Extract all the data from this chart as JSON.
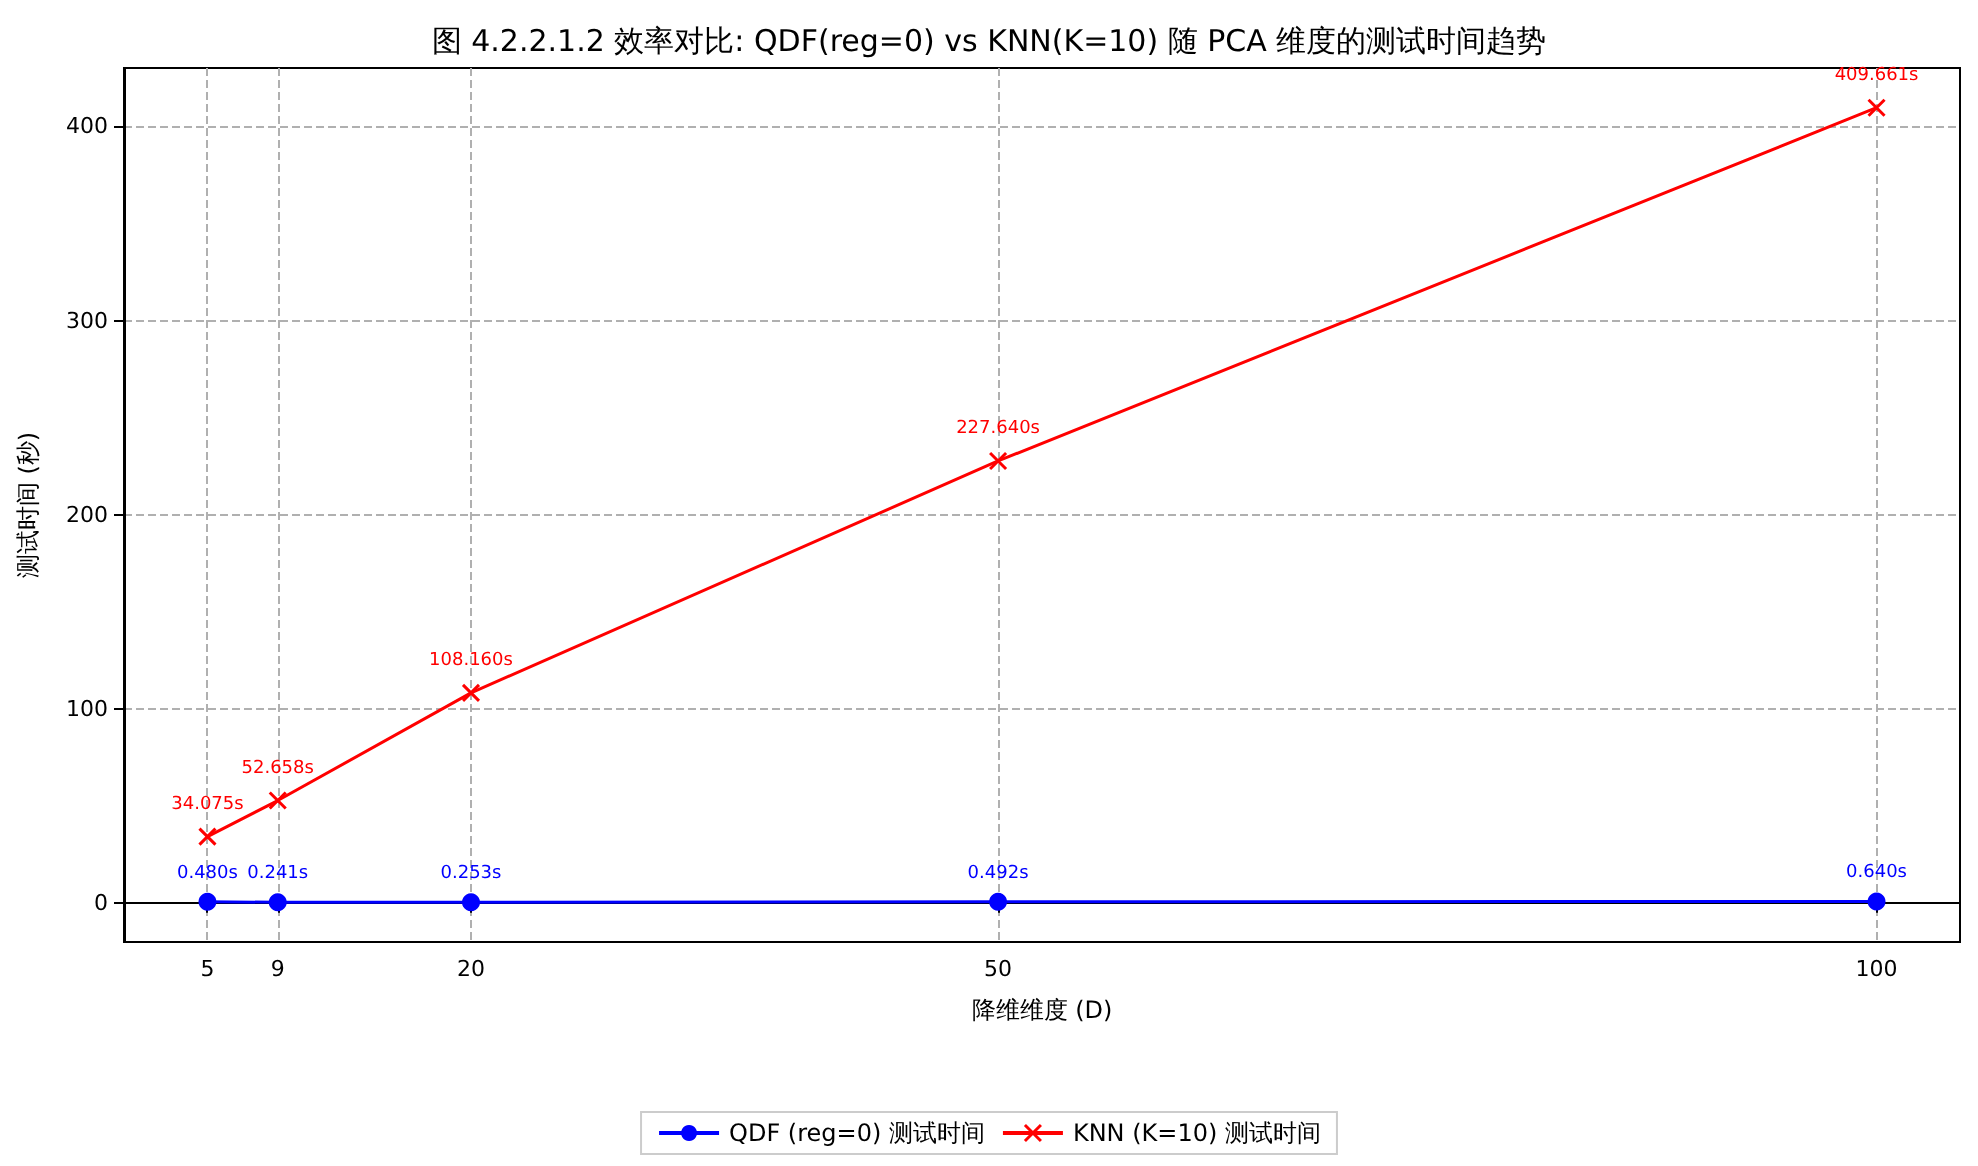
{
  "chart_data": {
    "type": "line",
    "title": "图 4.2.2.1.2 效率对比: QDF(reg=0) vs KNN(K=10) 随 PCA 维度的测试时间趋势",
    "xlabel": "降维维度 (D)",
    "ylabel": "测试时间 (秒)",
    "x": [
      5,
      9,
      20,
      50,
      100
    ],
    "series": [
      {
        "name": "QDF (reg=0) 测试时间",
        "color": "#0000ff",
        "marker": "circle",
        "values": [
          0.48,
          0.241,
          0.253,
          0.492,
          0.64
        ],
        "value_labels": [
          "0.480s",
          "0.241s",
          "0.253s",
          "0.492s",
          "0.640s"
        ]
      },
      {
        "name": "KNN (K=10) 测试时间",
        "color": "#ff0000",
        "marker": "cross",
        "values": [
          34.075,
          52.658,
          108.16,
          227.64,
          409.661
        ],
        "value_labels": [
          "34.075s",
          "52.658s",
          "108.160s",
          "227.640s",
          "409.661s"
        ]
      }
    ],
    "xlim": [
      0.25,
      104.75
    ],
    "xticks": [
      5,
      9,
      20,
      50,
      100
    ],
    "ylim": [
      -20.23,
      430.13
    ],
    "yticks": [
      0,
      100,
      200,
      300,
      400
    ],
    "grid": true,
    "legend": "bottom",
    "line_style": "solid"
  }
}
